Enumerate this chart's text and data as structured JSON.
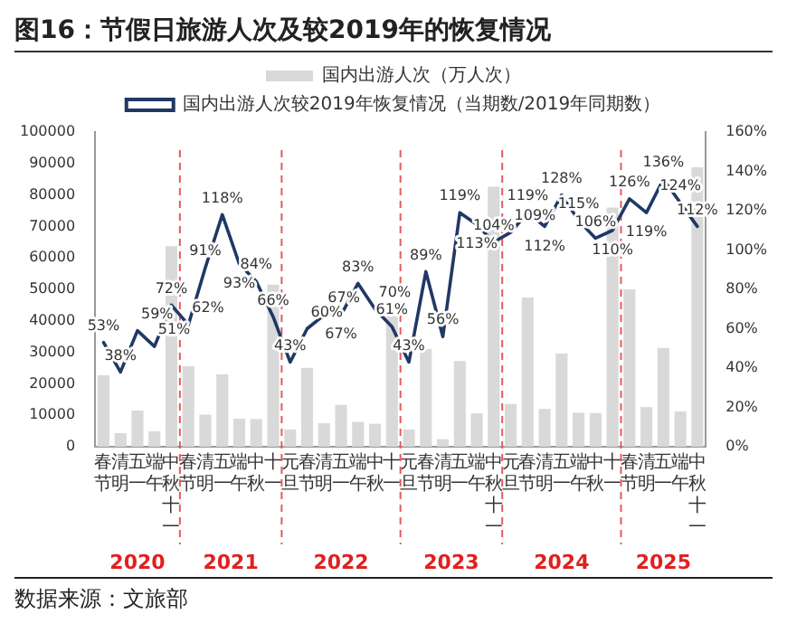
{
  "chart_data": {
    "type": "bar",
    "title": "图16：节假日旅游人次及较2019年的恢复情况",
    "categories": [
      "春节",
      "清明",
      "五一",
      "端午",
      "中秋十一",
      "春节",
      "清明",
      "五一",
      "端午",
      "中秋",
      "十一",
      "元旦",
      "春节",
      "清明",
      "五一",
      "端午",
      "中秋",
      "十一",
      "元旦",
      "春节",
      "清明",
      "五一",
      "端午",
      "中秋十一",
      "元旦",
      "春节",
      "清明",
      "五一",
      "端午",
      "中秋",
      "十一",
      "春节",
      "清明",
      "五一",
      "端午",
      "中秋十一"
    ],
    "series": [
      {
        "name": "国内出游人次（万人次）",
        "type": "bar",
        "color": "#d9d9d9",
        "values": [
          22700,
          4300,
          11500,
          4900,
          63700,
          25600,
          10200,
          23000,
          8900,
          8800,
          51500,
          5500,
          25100,
          7500,
          13300,
          7900,
          7300,
          42200,
          5500,
          31000,
          2400,
          27200,
          10600,
          82600,
          13600,
          47400,
          12000,
          29600,
          10800,
          10700,
          76000,
          50000,
          12600,
          31400,
          11200,
          88800
        ]
      },
      {
        "name": "国内出游人次较2019年恢复情况（当期数/2019年同期数）",
        "type": "line",
        "axis": "y2",
        "color": "#203864",
        "values": [
          53,
          38,
          59,
          51,
          72,
          62,
          91,
          118,
          93,
          84,
          66,
          43,
          60,
          67,
          67,
          83,
          70,
          61,
          43,
          89,
          56,
          119,
          113,
          104,
          109,
          119,
          112,
          128,
          115,
          106,
          110,
          126,
          119,
          136,
          124,
          112
        ],
        "value_labels": [
          "53%",
          "38%",
          "59%",
          "51%",
          "72%",
          "62%",
          "91%",
          "118%",
          "93%",
          "84%",
          "66%",
          "43%",
          "60%",
          "67%",
          "67%",
          "83%",
          "70%",
          "61%",
          "43%",
          "89%",
          "56%",
          "119%",
          "113%",
          "104%",
          "109%",
          "119%",
          "112%",
          "128%",
          "115%",
          "106%",
          "110%",
          "126%",
          "119%",
          "136%",
          "124%",
          "112%"
        ]
      }
    ],
    "ylim": [
      0,
      100000
    ],
    "yticks": [
      0,
      10000,
      20000,
      30000,
      40000,
      50000,
      60000,
      70000,
      80000,
      90000,
      100000
    ],
    "y2lim": [
      0,
      160
    ],
    "y2ticks": [
      {
        "value": 0,
        "label": "0%"
      },
      {
        "value": 20,
        "label": "20%"
      },
      {
        "value": 40,
        "label": "40%"
      },
      {
        "value": 60,
        "label": "60%"
      },
      {
        "value": 80,
        "label": "80%"
      },
      {
        "value": 100,
        "label": "100%"
      },
      {
        "value": 120,
        "label": "120%"
      },
      {
        "value": 140,
        "label": "140%"
      },
      {
        "value": 160,
        "label": "160%"
      }
    ],
    "legend": "top",
    "grid": false,
    "marker": "none",
    "annotations": [
      "2020",
      "2021",
      "2022",
      "2023",
      "2024",
      "2025",
      "数据来源：文旅部"
    ]
  }
}
